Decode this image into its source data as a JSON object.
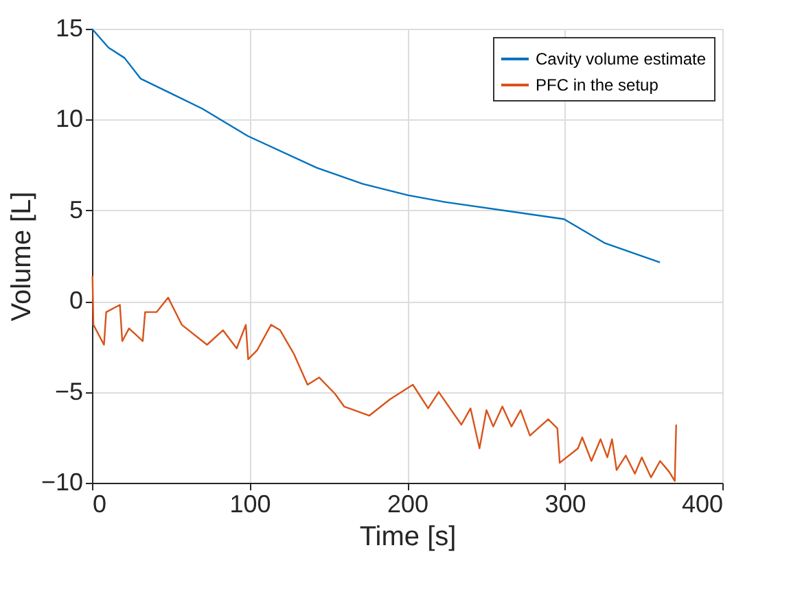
{
  "chart_data": {
    "type": "line",
    "xlabel": "Time [s]",
    "ylabel": "Volume [L]",
    "xlim": [
      0,
      400
    ],
    "xticks": [
      0,
      100,
      200,
      300,
      400
    ],
    "ylim": [
      -10,
      15
    ],
    "yticks": [
      -10,
      -5,
      0,
      5,
      10,
      15
    ],
    "grid": true,
    "legend": "top right",
    "marker": "none",
    "line_style": "solid",
    "series": [
      {
        "name": "Cavity volume estimate",
        "color": "#0072bd",
        "x": [
          0,
          10.5,
          20.6,
          30.8,
          70,
          98.8,
          142.6,
          171.8,
          200.4,
          224,
          299.5,
          325.6,
          360.4
        ],
        "values": [
          15,
          13.96,
          13.4,
          12.26,
          10.6,
          9.1,
          7.35,
          6.46,
          5.84,
          5.46,
          4.52,
          3.19,
          2.14
        ]
      },
      {
        "name": "PFC in the setup",
        "color": "#d95319",
        "x": [
          0.3,
          0.9,
          7.6,
          9.0,
          17.7,
          19.2,
          23.5,
          32.2,
          33.7,
          41,
          48.3,
          57,
          73,
          83.1,
          91.8,
          97.6,
          99.1,
          104.8,
          113.6,
          119.4,
          128.1,
          136.8,
          144.1,
          154.2,
          160,
          176,
          189.1,
          203.6,
          213.3,
          220,
          234.4,
          240.2,
          245.9,
          250.3,
          254.6,
          260.4,
          266.2,
          272,
          277.9,
          289.5,
          295.3,
          296.8,
          308.4,
          311.1,
          316.9,
          322.7,
          327,
          330,
          332.9,
          338.7,
          344.5,
          348.9,
          354.7,
          360.5,
          366.3,
          369.8,
          370.7
        ],
        "values": [
          1.4,
          -1.3,
          -2.4,
          -0.6,
          -0.2,
          -2.2,
          -1.5,
          -2.2,
          -0.6,
          -0.6,
          0.2,
          -1.3,
          -2.4,
          -1.6,
          -2.6,
          -1.3,
          -3.2,
          -2.7,
          -1.3,
          -1.6,
          -2.9,
          -4.6,
          -4.2,
          -5.1,
          -5.8,
          -6.3,
          -5.4,
          -4.6,
          -5.9,
          -5.0,
          -6.8,
          -5.9,
          -8.1,
          -6.0,
          -6.9,
          -5.8,
          -6.9,
          -6.0,
          -7.4,
          -6.5,
          -7.0,
          -8.9,
          -8.1,
          -7.5,
          -8.8,
          -7.6,
          -8.6,
          -7.6,
          -9.3,
          -8.5,
          -9.5,
          -8.6,
          -9.7,
          -8.8,
          -9.4,
          -9.9,
          -6.8
        ]
      }
    ]
  }
}
